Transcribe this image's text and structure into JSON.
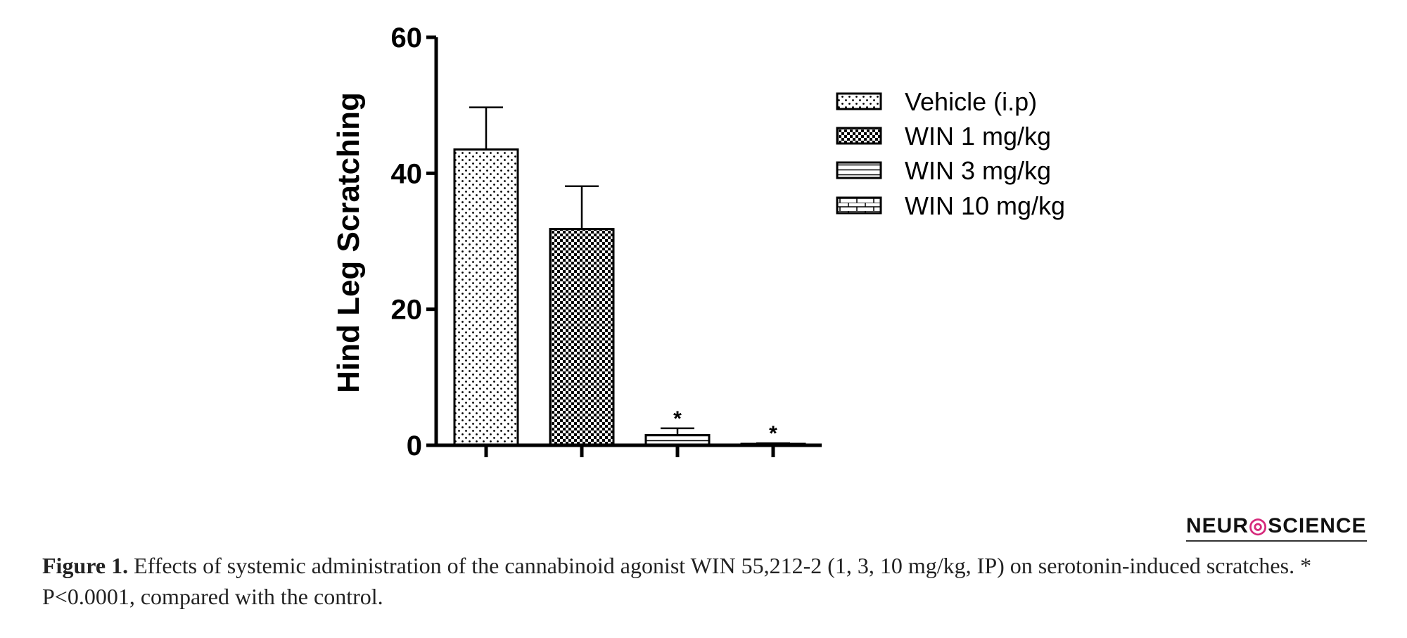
{
  "chart_data": {
    "type": "bar",
    "title": "",
    "xlabel": "",
    "ylabel": "Hind Leg Scratching",
    "ylim": [
      0,
      60
    ],
    "yticks": [
      0,
      20,
      40,
      60
    ],
    "grid": false,
    "legend_position": "top-right",
    "series": [
      {
        "name": "Vehicle (i.p)",
        "value": 43.5,
        "error": 6.2,
        "pattern": "dots",
        "significant": false
      },
      {
        "name": "WIN 1 mg/kg",
        "value": 31.8,
        "error": 6.3,
        "pattern": "checker",
        "significant": false
      },
      {
        "name": "WIN 3 mg/kg",
        "value": 1.5,
        "error": 1.0,
        "pattern": "stripes",
        "significant": true
      },
      {
        "name": "WIN 10 mg/kg",
        "value": 0.2,
        "error": 0.1,
        "pattern": "bricks",
        "significant": true
      }
    ],
    "significance_marker": "*"
  },
  "logo": {
    "left": "NEUR",
    "o": "◎",
    "right": "SCIENCE"
  },
  "caption": {
    "label": "Figure 1.",
    "text": " Effects of systemic administration of the cannabinoid agonist WIN 55,212-2 (1, 3, 10 mg/kg, IP) on serotonin-induced scratches. * P<0.0001, compared with the control."
  }
}
